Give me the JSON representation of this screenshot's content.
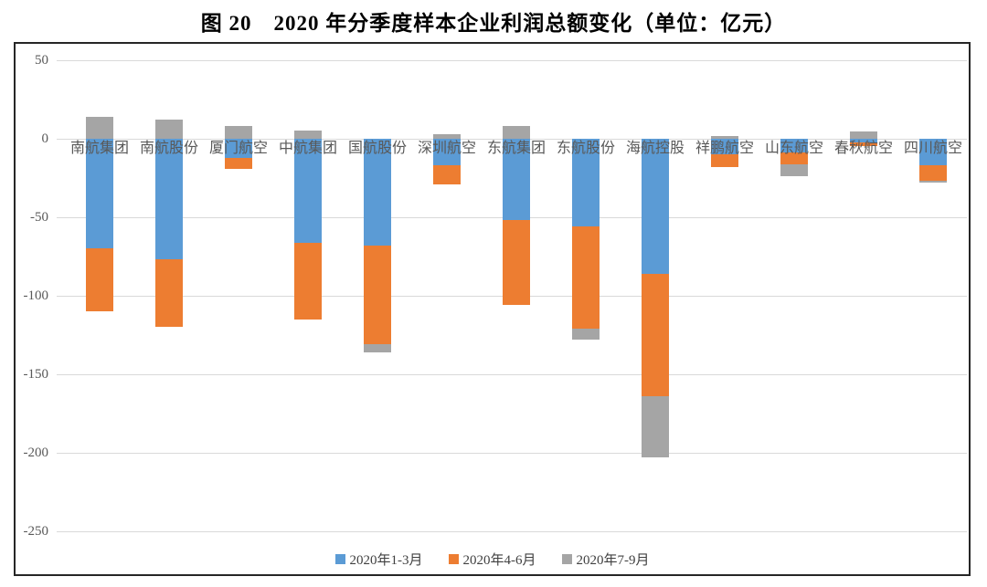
{
  "figure": {
    "title": "图 20　2020 年分季度样本企业利润总额变化（单位：亿元）"
  },
  "chart_data": {
    "type": "bar",
    "stacked": true,
    "orientation": "vertical",
    "title": "图 20　2020 年分季度样本企业利润总额变化",
    "unit": "亿元",
    "categories": [
      "南航集团",
      "南航股份",
      "厦门航空",
      "中航集团",
      "国航股份",
      "深圳航空",
      "东航集团",
      "东航股份",
      "海航控股",
      "祥鹏航空",
      "山东航空",
      "春秋航空",
      "四川航空"
    ],
    "series": [
      {
        "name": "2020年1-3月",
        "color": "#5B9BD5",
        "values": [
          -70,
          -77,
          -12,
          -66,
          -68,
          -17,
          -52,
          -56,
          -86,
          -10,
          -9,
          -2.5,
          -17
        ]
      },
      {
        "name": "2020年4-6月",
        "color": "#ED7D31",
        "values": [
          -40,
          -43,
          -7,
          -49,
          -63,
          -12,
          -54,
          -65,
          -78,
          -8,
          -7,
          -2,
          -10
        ]
      },
      {
        "name": "2020年7-9月",
        "color": "#A5A5A5",
        "values": [
          14,
          12,
          8,
          5,
          -5,
          3,
          8,
          -7,
          -39,
          2,
          -8,
          4.5,
          -1
        ]
      }
    ],
    "ylim": [
      -250,
      50
    ],
    "yticks": [
      "50",
      "0",
      "-50",
      "-100",
      "-150",
      "-200",
      "-250"
    ],
    "ytick_values": [
      50,
      0,
      -50,
      -100,
      -150,
      -200,
      -250
    ],
    "grid": true,
    "legend_position": "bottom",
    "colors": {
      "gridline": "#D9D9D9",
      "axis_labels": "#595959",
      "category_labels": "#595959",
      "border": "#262626"
    }
  }
}
